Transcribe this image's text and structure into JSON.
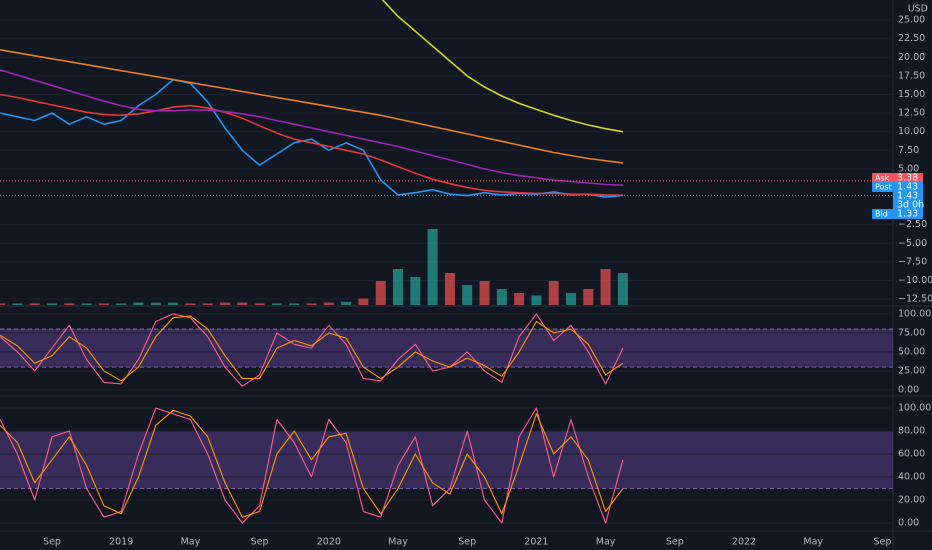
{
  "chart_data": [
    {
      "type": "line",
      "currency": "USD",
      "ylim": [
        -13.3,
        27.7
      ],
      "yticks": [
        {
          "value": 25,
          "label": "25.00"
        },
        {
          "value": 22.5,
          "label": "22.50"
        },
        {
          "value": 20,
          "label": "20.00"
        },
        {
          "value": 17.5,
          "label": "17.50"
        },
        {
          "value": 15,
          "label": "15.00"
        },
        {
          "value": 12.5,
          "label": "12.50"
        },
        {
          "value": 10,
          "label": "10.00"
        },
        {
          "value": 7.5,
          "label": "7.50"
        },
        {
          "value": 5,
          "label": "5.00"
        },
        {
          "value": -2.5,
          "label": "−2.50"
        },
        {
          "value": -5,
          "label": "−5.00"
        },
        {
          "value": -7.5,
          "label": "−7.50"
        },
        {
          "value": -10,
          "label": "−10.00"
        },
        {
          "value": -12.5,
          "label": "−12.50"
        }
      ],
      "series": [
        {
          "color": "#2196f3",
          "values": [
            12.5,
            12.0,
            11.5,
            12.5,
            11.0,
            12.0,
            11.0,
            11.5,
            13.5,
            15.0,
            17.0,
            16.5,
            14.0,
            10.5,
            7.5,
            5.5,
            7.0,
            8.5,
            9.0,
            7.5,
            8.5,
            7.5,
            3.5,
            1.5,
            1.8,
            2.2,
            1.6,
            1.4,
            1.8,
            1.5,
            1.7,
            1.6,
            1.9,
            1.5,
            1.6,
            1.2,
            1.43,
            null,
            null,
            null,
            null,
            null,
            null,
            null,
            null,
            null,
            null,
            null,
            null,
            null,
            null,
            null
          ]
        },
        {
          "color": "#e53935",
          "values": [
            15,
            14.6,
            14.1,
            13.6,
            13.1,
            12.6,
            12.3,
            12.2,
            12.4,
            12.8,
            13.3,
            13.5,
            13.2,
            12.6,
            11.8,
            10.8,
            9.8,
            9.0,
            8.5,
            8.0,
            7.5,
            7.0,
            6.2,
            5.3,
            4.4,
            3.6,
            3.0,
            2.5,
            2.1,
            1.9,
            1.8,
            1.7,
            1.7,
            1.6,
            1.6,
            1.5,
            1.45,
            null,
            null,
            null,
            null,
            null,
            null,
            null,
            null,
            null,
            null,
            null,
            null,
            null,
            null,
            null
          ]
        },
        {
          "color": "#9c27b0",
          "values": [
            18.3,
            17.6,
            16.9,
            16.2,
            15.5,
            14.8,
            14.1,
            13.5,
            13.0,
            12.8,
            12.8,
            12.9,
            12.9,
            12.7,
            12.4,
            12.0,
            11.5,
            11.0,
            10.5,
            10.0,
            9.5,
            9.0,
            8.5,
            8.0,
            7.4,
            6.8,
            6.2,
            5.6,
            5.0,
            4.5,
            4.1,
            3.8,
            3.5,
            3.3,
            3.1,
            2.9,
            2.8,
            null,
            null,
            null,
            null,
            null,
            null,
            null,
            null,
            null,
            null,
            null,
            null,
            null,
            null,
            null
          ]
        },
        {
          "color": "#e67e22",
          "values": [
            21,
            20.6,
            20.2,
            19.8,
            19.4,
            19.0,
            18.6,
            18.2,
            17.8,
            17.4,
            17.0,
            16.6,
            16.2,
            15.8,
            15.4,
            15.0,
            14.6,
            14.2,
            13.8,
            13.4,
            13.0,
            12.6,
            12.2,
            11.7,
            11.2,
            10.7,
            10.2,
            9.7,
            9.2,
            8.7,
            8.2,
            7.7,
            7.2,
            6.8,
            6.4,
            6.1,
            5.8,
            null,
            null,
            null,
            null,
            null,
            null,
            null,
            null,
            null,
            null,
            null,
            null,
            null,
            null,
            null
          ]
        },
        {
          "color": "#d4d42a",
          "values": [
            null,
            null,
            null,
            null,
            null,
            null,
            null,
            null,
            null,
            null,
            null,
            null,
            null,
            null,
            null,
            null,
            null,
            null,
            null,
            null,
            null,
            null,
            28,
            25.5,
            23.5,
            21.5,
            19.5,
            17.5,
            16,
            14.8,
            13.8,
            13,
            12.2,
            11.5,
            10.9,
            10.4,
            10.0,
            null,
            null,
            null,
            null,
            null,
            null,
            null,
            null,
            null,
            null,
            null,
            null,
            null,
            null,
            null
          ]
        }
      ],
      "price_tags": [
        {
          "name": "Ask",
          "value": 3.38,
          "color": "#f7525f"
        },
        {
          "name": "Post",
          "value": 1.43,
          "color": "#2196f3"
        },
        {
          "value": 1.43,
          "countdown": "3d 0h",
          "color": "#2196f3"
        },
        {
          "name": "Bid",
          "value": 1.33,
          "color": "#2196f3"
        }
      ]
    },
    {
      "type": "bar",
      "ylim": [
        0,
        100
      ],
      "values": [
        2,
        2,
        2,
        2,
        2,
        2,
        2,
        2,
        3,
        3,
        3,
        2,
        2,
        3,
        3,
        2,
        2,
        2,
        2,
        3,
        4,
        8,
        30,
        45,
        35,
        95,
        40,
        25,
        30,
        20,
        15,
        12,
        30,
        15,
        20,
        45,
        40,
        null,
        null,
        null,
        null,
        null,
        null,
        null,
        null,
        null,
        null,
        null,
        null,
        null,
        null,
        null
      ],
      "colors": [
        "#ef5350",
        "#26a69a",
        "#ef5350",
        "#26a69a",
        "#ef5350",
        "#26a69a",
        "#ef5350",
        "#26a69a",
        "#26a69a",
        "#26a69a",
        "#26a69a",
        "#ef5350",
        "#ef5350",
        "#ef5350",
        "#ef5350",
        "#ef5350",
        "#26a69a",
        "#26a69a",
        "#ef5350",
        "#ef5350",
        "#26a69a",
        "#ef5350",
        "#ef5350",
        "#26a69a",
        "#26a69a",
        "#26a69a",
        "#ef5350",
        "#26a69a",
        "#ef5350",
        "#26a69a",
        "#ef5350",
        "#26a69a",
        "#ef5350",
        "#26a69a",
        "#ef5350",
        "#ef5350",
        "#26a69a",
        null,
        null,
        null,
        null,
        null,
        null,
        null,
        null,
        null,
        null,
        null,
        null,
        null,
        null,
        null
      ]
    },
    {
      "type": "line",
      "ylim": [
        -6.6,
        109
      ],
      "band": [
        30,
        80
      ],
      "yticks": [
        {
          "value": 100,
          "label": "100.00"
        },
        {
          "value": 75,
          "label": "75.00"
        },
        {
          "value": 50,
          "label": "50.00"
        },
        {
          "value": 25,
          "label": "25.00"
        },
        {
          "value": 0,
          "label": "0.00"
        }
      ],
      "series": [
        {
          "color": "#ff5c8a",
          "values": [
            70,
            50,
            25,
            55,
            85,
            40,
            10,
            8,
            40,
            90,
            100,
            95,
            70,
            30,
            5,
            20,
            75,
            60,
            55,
            85,
            60,
            15,
            12,
            40,
            60,
            25,
            30,
            50,
            25,
            10,
            70,
            100,
            65,
            85,
            50,
            8,
            55,
            null,
            null,
            null,
            null,
            null,
            null,
            null,
            null,
            null,
            null,
            null,
            null,
            null,
            null,
            null
          ]
        },
        {
          "color": "#ff9800",
          "values": [
            72,
            58,
            35,
            45,
            70,
            55,
            25,
            12,
            30,
            70,
            95,
            97,
            80,
            45,
            15,
            15,
            55,
            65,
            58,
            75,
            68,
            30,
            15,
            30,
            50,
            38,
            30,
            42,
            32,
            18,
            50,
            90,
            75,
            80,
            60,
            20,
            35,
            null,
            null,
            null,
            null,
            null,
            null,
            null,
            null,
            null,
            null,
            null,
            null,
            null,
            null,
            null
          ]
        }
      ]
    },
    {
      "type": "line",
      "ylim": [
        -6.1,
        109.6
      ],
      "band": [
        30,
        80
      ],
      "yticks": [
        {
          "value": 100,
          "label": "100.00"
        },
        {
          "value": 80,
          "label": "80.00"
        },
        {
          "value": 60,
          "label": "60.00"
        },
        {
          "value": 40,
          "label": "40.00"
        },
        {
          "value": 20,
          "label": "20.00"
        },
        {
          "value": 0,
          "label": "0.00"
        }
      ],
      "categories": [
        null,
        null,
        null,
        "Sep",
        null,
        null,
        null,
        "2019",
        null,
        null,
        null,
        "May",
        null,
        null,
        null,
        "Sep",
        null,
        null,
        null,
        "2020",
        null,
        null,
        null,
        "May",
        null,
        null,
        null,
        "Sep",
        null,
        null,
        null,
        "2021",
        null,
        null,
        null,
        "May",
        null,
        null,
        null,
        "Sep",
        null,
        null,
        null,
        "2022",
        null,
        null,
        null,
        "May",
        null,
        null,
        null,
        "Sep"
      ],
      "series": [
        {
          "color": "#ff5c8a",
          "values": [
            90,
            60,
            20,
            75,
            80,
            30,
            5,
            10,
            60,
            100,
            95,
            90,
            60,
            20,
            0,
            15,
            90,
            70,
            40,
            90,
            70,
            10,
            5,
            50,
            75,
            15,
            30,
            80,
            20,
            0,
            75,
            100,
            40,
            90,
            40,
            0,
            55,
            null,
            null,
            null,
            null,
            null,
            null,
            null,
            null,
            null,
            null,
            null,
            null,
            null,
            null,
            null
          ]
        },
        {
          "color": "#ff9800",
          "values": [
            85,
            70,
            35,
            55,
            75,
            50,
            15,
            8,
            40,
            85,
            98,
            93,
            75,
            35,
            5,
            10,
            60,
            80,
            55,
            75,
            78,
            30,
            8,
            30,
            60,
            35,
            25,
            60,
            40,
            8,
            50,
            95,
            60,
            75,
            55,
            10,
            30,
            null,
            null,
            null,
            null,
            null,
            null,
            null,
            null,
            null,
            null,
            null,
            null,
            null,
            null,
            null
          ]
        }
      ]
    }
  ]
}
